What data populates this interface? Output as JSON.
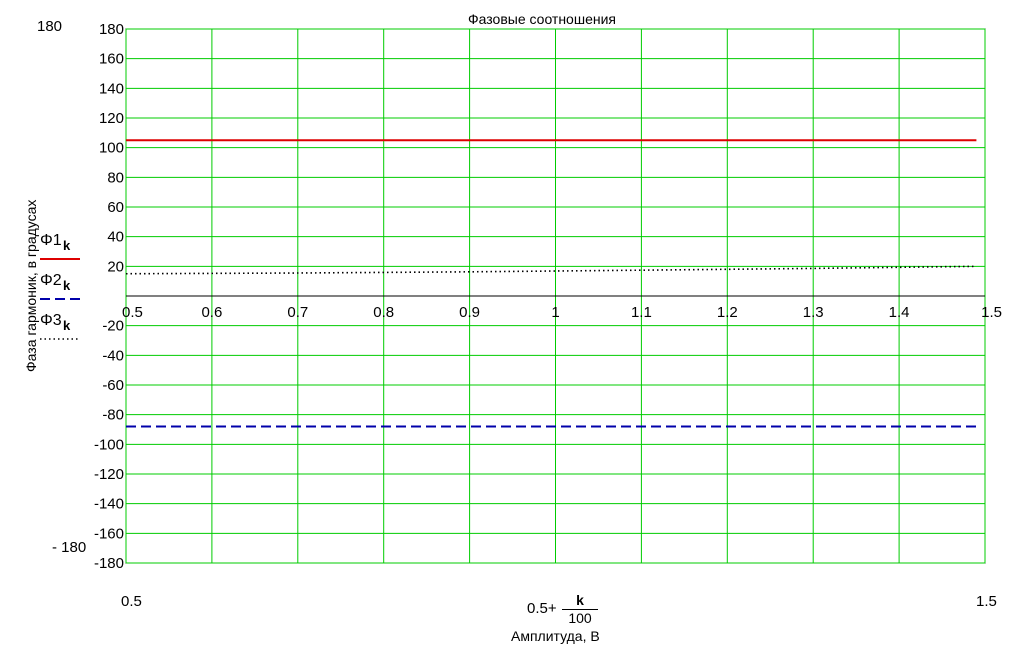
{
  "chart_data": {
    "type": "line",
    "title": "Фазовые соотношения",
    "ylabel": "Фаза гармоник, в градусах",
    "xlabel": "Амплитуда, В",
    "x_expression": {
      "prefix": "0.5+",
      "numerator": "k",
      "denominator": "100"
    },
    "ylim": [
      -180,
      180
    ],
    "xlim": [
      0.5,
      1.5
    ],
    "y_ticks": [
      -180,
      -160,
      -140,
      -120,
      -100,
      -80,
      -60,
      -40,
      -20,
      20,
      40,
      60,
      80,
      100,
      120,
      140,
      160,
      180
    ],
    "y_tick_labels": [
      "-180",
      "-160",
      "-140",
      "-120",
      "-100",
      "-80",
      "-60",
      "-40",
      "-20",
      "20",
      "40",
      "60",
      "80",
      "100",
      "120",
      "140",
      "160",
      "180"
    ],
    "x_ticks": [
      0.5,
      0.6,
      0.7,
      0.8,
      0.9,
      1,
      1.1,
      1.2,
      1.3,
      1.4,
      1.5
    ],
    "x_tick_labels": [
      "0.5",
      "0.6",
      "0.7",
      "0.8",
      "0.9",
      "1",
      "1.1",
      "1.2",
      "1.3",
      "1.4",
      "1.5"
    ],
    "extra_labels": {
      "y_top": "180",
      "y_bottom": "- 180",
      "x_left": "0.5",
      "x_right": "1.5"
    },
    "grid": true,
    "grid_color": "#00cc00",
    "legend_position": "left",
    "series": [
      {
        "name": "Φ1",
        "subscript": "k",
        "color": "#dd0000",
        "dash": "solid",
        "x": [
          0.5,
          1.49
        ],
        "y": [
          105,
          105
        ]
      },
      {
        "name": "Φ2",
        "subscript": "k",
        "color": "#0000aa",
        "dash": "dashed",
        "x": [
          0.5,
          1.49
        ],
        "y": [
          -88,
          -88
        ]
      },
      {
        "name": "Φ3",
        "subscript": "k",
        "color": "#000000",
        "dash": "dotted",
        "x": [
          0.5,
          0.7,
          0.9,
          1.1,
          1.3,
          1.49
        ],
        "y": [
          15,
          15.5,
          16.3,
          17.4,
          18.6,
          20
        ]
      }
    ]
  }
}
